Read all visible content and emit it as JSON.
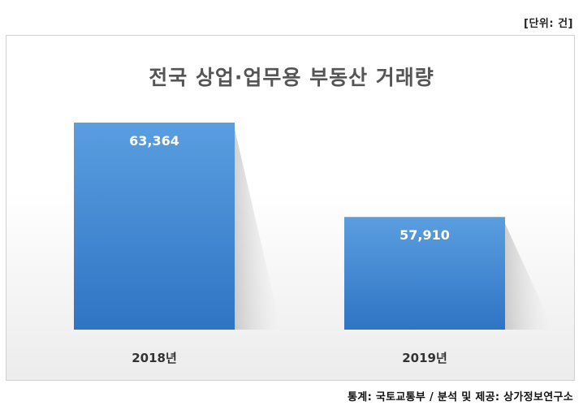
{
  "unit_label": "[단위: 건]",
  "source_label": "통계: 국토교통부 / 분석 및 제공: 상가정보연구소",
  "chart_data": {
    "type": "bar",
    "title": "전국 상업·업무용 부동산 거래량",
    "categories": [
      "2018년",
      "2019년"
    ],
    "values": [
      63364,
      57910
    ],
    "value_labels": [
      "63,364",
      "57,910"
    ],
    "bar_color": "#3a7fcc",
    "legend": "none",
    "grid": false
  }
}
